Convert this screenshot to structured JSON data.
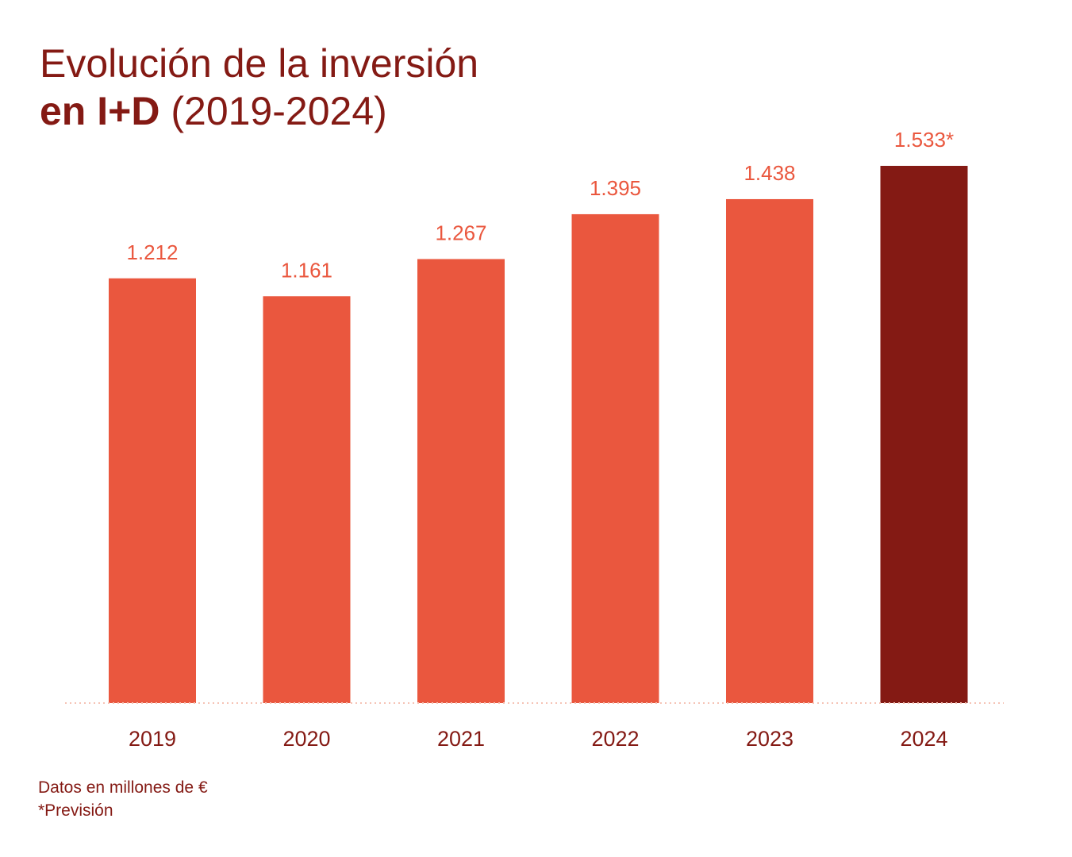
{
  "chart_data": {
    "type": "bar",
    "title_line1": "Evolución de la inversión",
    "title_line2_bold": "en I+D",
    "title_line2_regular": "(2019-2024)",
    "categories": [
      "2019",
      "2020",
      "2021",
      "2022",
      "2023",
      "2024"
    ],
    "values": [
      1212,
      1161,
      1267,
      1395,
      1438,
      1533
    ],
    "value_labels": [
      "1.212",
      "1.161",
      "1.267",
      "1.395",
      "1.438",
      "1.533*"
    ],
    "forecast": [
      false,
      false,
      false,
      false,
      false,
      true
    ],
    "ylim": [
      0,
      1533
    ],
    "xlabel": "",
    "ylabel": "",
    "grid": false,
    "legend": null,
    "colors": {
      "bar": "#ea573e",
      "forecast_bar": "#841a14",
      "value_label": "#ea573e",
      "tick_label": "#841a14",
      "title": "#841a14",
      "baseline": "#f5c3b5"
    }
  },
  "notes": {
    "units": "Datos en millones de €",
    "forecast_note": "*Previsión"
  }
}
